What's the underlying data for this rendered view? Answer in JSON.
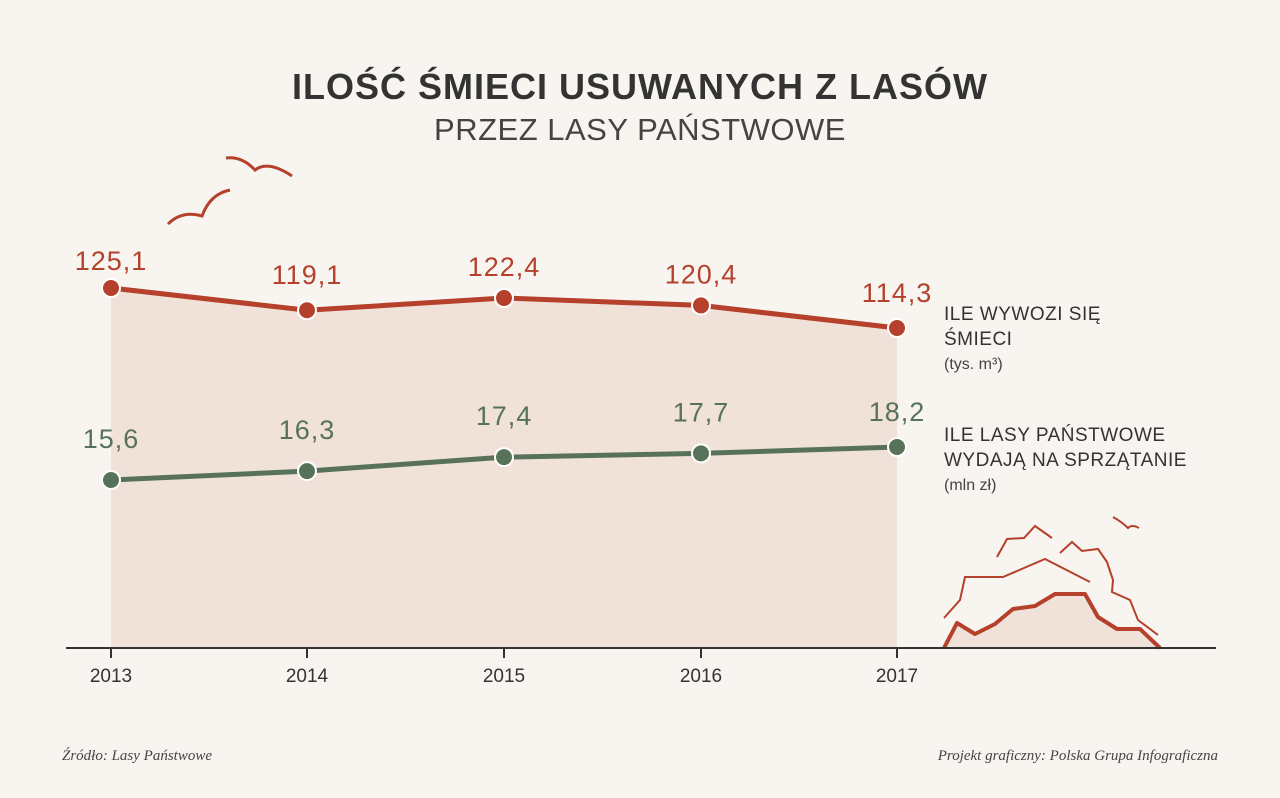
{
  "header": {
    "title": "ILOŚĆ ŚMIECI USUWANYCH Z LASÓW",
    "subtitle": "PRZEZ LASY PAŃSTWOWE"
  },
  "chart_data": {
    "type": "line",
    "title": "ILOŚĆ ŚMIECI USUWANYCH Z LASÓW",
    "subtitle": "PRZEZ LASY PAŃSTWOWE",
    "x": [
      "2013",
      "2014",
      "2015",
      "2016",
      "2017"
    ],
    "series": [
      {
        "name": "ILE WYWOZI SIĘ ŚMIECI",
        "name_lines": [
          "ILE WYWOZI SIĘ",
          "ŚMIECI"
        ],
        "unit": "(tys. m³)",
        "values": [
          125.1,
          119.1,
          122.4,
          120.4,
          114.3
        ],
        "labels": [
          "125,1",
          "119,1",
          "122,4",
          "120,4",
          "114,3"
        ],
        "color": "#b5402b"
      },
      {
        "name": "ILE LASY PAŃSTWOWE WYDAJĄ NA SPRZĄTANIE",
        "name_lines": [
          "ILE LASY PAŃSTWOWE",
          "WYDAJĄ NA SPRZĄTANIE"
        ],
        "unit": "(mln zł)",
        "values": [
          15.6,
          16.3,
          17.4,
          17.7,
          18.2
        ],
        "labels": [
          "15,6",
          "16,3",
          "17,4",
          "17,7",
          "18,2"
        ],
        "color": "#577259"
      }
    ],
    "area_fill": "#f1e2d9",
    "grid": false,
    "legend": "right"
  },
  "footer": {
    "source": "Źródło: Lasy Państwowe",
    "credit": "Projekt graficzny: Polska Grupa Infograficzna"
  }
}
